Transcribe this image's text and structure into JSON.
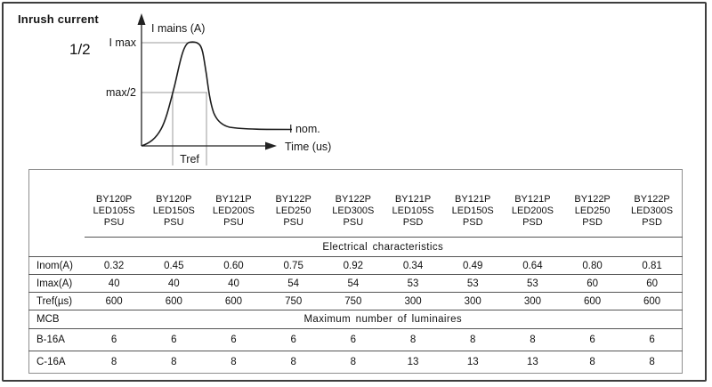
{
  "figure": {
    "title": "Inrush current",
    "fraction_label": "1/2"
  },
  "graph": {
    "y_axis_label": "I mains (A)",
    "x_axis_label": "Time (us)",
    "imax_label": "I max",
    "half_max_label": "max/2",
    "inom_label": "I nom.",
    "tref_label": "Tref"
  },
  "table": {
    "columns": [
      {
        "lines": [
          "BY120P",
          "LED105S",
          "PSU"
        ]
      },
      {
        "lines": [
          "BY120P",
          "LED150S",
          "PSU"
        ]
      },
      {
        "lines": [
          "BY121P",
          "LED200S",
          "PSU"
        ]
      },
      {
        "lines": [
          "BY122P",
          "LED250",
          "PSU"
        ]
      },
      {
        "lines": [
          "BY122P",
          "LED300S",
          "PSU"
        ]
      },
      {
        "lines": [
          "BY121P",
          "LED105S",
          "PSD"
        ]
      },
      {
        "lines": [
          "BY121P",
          "LED150S",
          "PSD"
        ]
      },
      {
        "lines": [
          "BY121P",
          "LED200S",
          "PSD"
        ]
      },
      {
        "lines": [
          "BY122P",
          "LED250",
          "PSD"
        ]
      },
      {
        "lines": [
          "BY122P",
          "LED300S",
          "PSD"
        ]
      }
    ],
    "electrical_section_label": "Electrical characteristics",
    "rows": [
      {
        "label": "Inom(A)",
        "values": [
          "0.32",
          "0.45",
          "0.60",
          "0.75",
          "0.92",
          "0.34",
          "0.49",
          "0.64",
          "0.80",
          "0.81"
        ]
      },
      {
        "label": "Imax(A)",
        "values": [
          "40",
          "40",
          "40",
          "54",
          "54",
          "53",
          "53",
          "53",
          "60",
          "60"
        ]
      },
      {
        "label": "Tref(µs)",
        "values": [
          "600",
          "600",
          "600",
          "750",
          "750",
          "300",
          "300",
          "300",
          "600",
          "600"
        ]
      }
    ],
    "mcb_section": {
      "label": "MCB",
      "header": "Maximum number of luminaires"
    },
    "mcb_rows": [
      {
        "label": "B-16A",
        "values": [
          "6",
          "6",
          "6",
          "6",
          "6",
          "8",
          "8",
          "8",
          "6",
          "6"
        ]
      },
      {
        "label": "C-16A",
        "values": [
          "8",
          "8",
          "8",
          "8",
          "8",
          "13",
          "13",
          "13",
          "8",
          "8"
        ]
      }
    ]
  },
  "colors": {
    "curve": "#1c1c1c",
    "gridline": "#9b9b9b",
    "axis": "#222222",
    "table_rule": "#555555",
    "table_border": "#8f8f8f",
    "figure_border": "#3d3d3d"
  }
}
